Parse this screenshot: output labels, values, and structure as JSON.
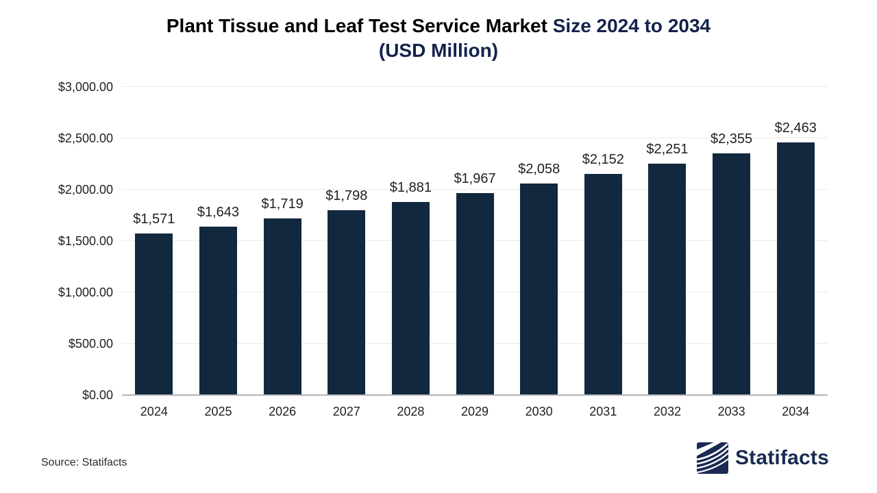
{
  "title": {
    "part1": "Plant Tissue and Leaf Test Service Market ",
    "part2": "Size 2024 to 2034",
    "line2": "(USD Million)"
  },
  "footer": {
    "source_label": "Source: Statifacts",
    "brand_name": "Statifacts",
    "brand_logo_icon": "statifacts-wave-logo"
  },
  "colors": {
    "bar": "#12283E",
    "title_primary": "#000000",
    "title_accent": "#14224C",
    "gridline": "#EAEAEA",
    "axis_line": "#B3B3B3",
    "label_text": "#1F1F1F",
    "brand_navy": "#1A2A52"
  },
  "chart_data": {
    "type": "bar",
    "title": "Plant Tissue and Leaf Test Service Market Size 2024 to 2034 (USD Million)",
    "categories": [
      "2024",
      "2025",
      "2026",
      "2027",
      "2028",
      "2029",
      "2030",
      "2031",
      "2032",
      "2033",
      "2034"
    ],
    "values": [
      1571,
      1643,
      1719,
      1798,
      1881,
      1967,
      2058,
      2152,
      2251,
      2355,
      2463
    ],
    "value_labels": [
      "$1,571",
      "$1,643",
      "$1,719",
      "$1,798",
      "$1,881",
      "$1,967",
      "$2,058",
      "$2,152",
      "$2,251",
      "$2,355",
      "$2,463"
    ],
    "xlabel": "",
    "ylabel": "",
    "ylim": [
      0,
      3000
    ],
    "ytick_step": 500,
    "ytick_labels": [
      "$0.00",
      "$500.00",
      "$1,000.00",
      "$1,500.00",
      "$2,000.00",
      "$2,500.00",
      "$3,000.00"
    ],
    "grid": true,
    "legend": false,
    "bar_color": "#12283E"
  }
}
